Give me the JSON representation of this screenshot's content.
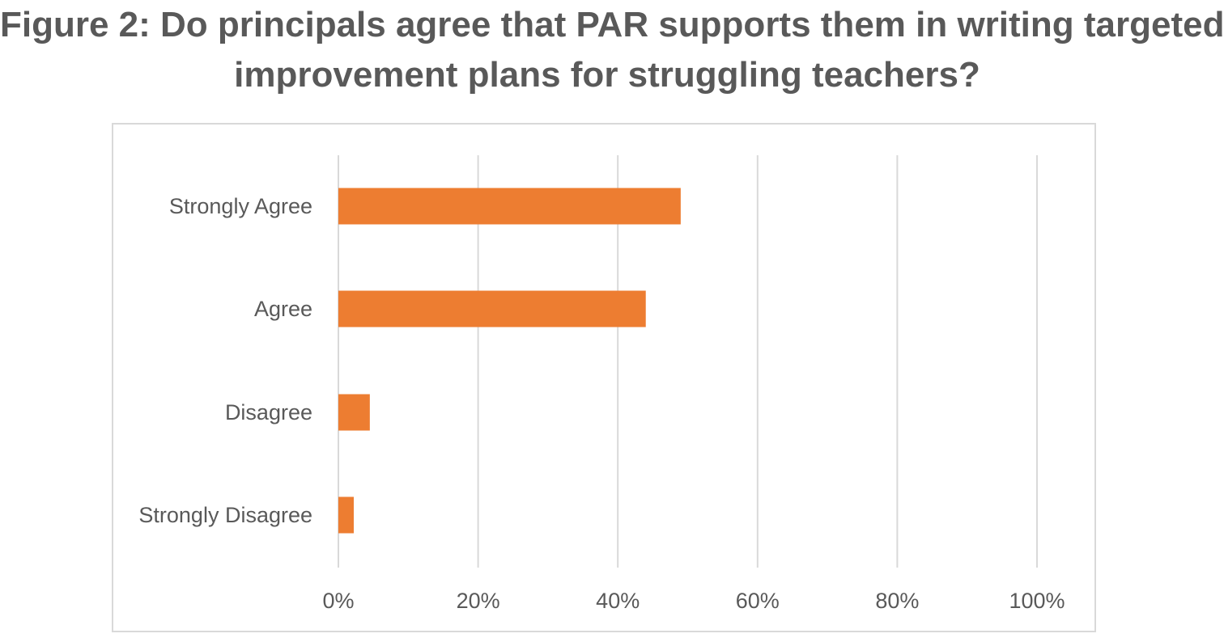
{
  "title_lines": [
    "Figure 2: Do principals agree that PAR supports them in writing targeted",
    "improvement plans for struggling teachers?"
  ],
  "chart_data": {
    "type": "bar",
    "orientation": "horizontal",
    "title": "Figure 2: Do principals agree that PAR supports them in writing targeted improvement plans for struggling teachers?",
    "categories": [
      "Strongly Agree",
      "Agree",
      "Disagree",
      "Strongly Disagree"
    ],
    "values": [
      0.49,
      0.44,
      0.045,
      0.022
    ],
    "xlim": [
      0,
      1
    ],
    "x_ticks": [
      "0%",
      "20%",
      "40%",
      "60%",
      "80%",
      "100%"
    ],
    "grid": true,
    "legend": "none",
    "bar_color": "#ED7D31",
    "grid_color": "#D9D9D9"
  }
}
